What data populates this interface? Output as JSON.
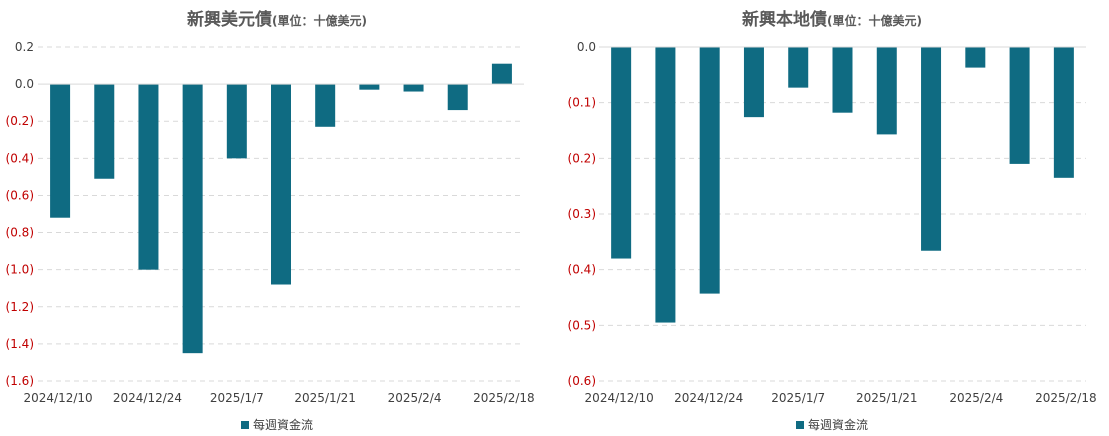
{
  "colors": {
    "bar": "#0f6b82",
    "negative_tick": "#c00000",
    "positive_tick": "#404040",
    "grid": "#d9d9d9"
  },
  "chart_data": [
    {
      "type": "bar",
      "title": "新興美元債",
      "title_unit": "(單位：十億美元)",
      "x_tick_labels": [
        "2024/12/10",
        "2024/12/24",
        "2025/1/7",
        "2025/1/21",
        "2025/2/4",
        "2025/2/18"
      ],
      "y_tick_labels": [
        "0.2",
        "0.0",
        "(0.2)",
        "(0.4)",
        "(0.6)",
        "(0.8)",
        "(1.0)",
        "(1.2)",
        "(1.4)",
        "(1.6)"
      ],
      "ylim": [
        -1.6,
        0.2
      ],
      "grid": true,
      "legend_position": "bottom",
      "series": [
        {
          "name": "每週資金流",
          "values": [
            -0.72,
            -0.51,
            -1.0,
            -1.45,
            -0.4,
            -1.08,
            -0.23,
            -0.03,
            -0.04,
            -0.14,
            0.11
          ]
        }
      ]
    },
    {
      "type": "bar",
      "title": "新興本地債",
      "title_unit": "(單位：十億美元)",
      "x_tick_labels": [
        "2024/12/10",
        "2024/12/24",
        "2025/1/7",
        "2025/1/21",
        "2025/2/4",
        "2025/2/18"
      ],
      "y_tick_labels": [
        "0.0",
        "(0.1)",
        "(0.2)",
        "(0.3)",
        "(0.4)",
        "(0.5)",
        "(0.6)"
      ],
      "ylim": [
        -0.6,
        0.0
      ],
      "grid": true,
      "legend_position": "bottom",
      "series": [
        {
          "name": "每週資金流",
          "values": [
            -0.38,
            -0.495,
            -0.443,
            -0.126,
            -0.073,
            -0.118,
            -0.157,
            -0.366,
            -0.037,
            -0.21,
            -0.235
          ]
        }
      ]
    }
  ]
}
